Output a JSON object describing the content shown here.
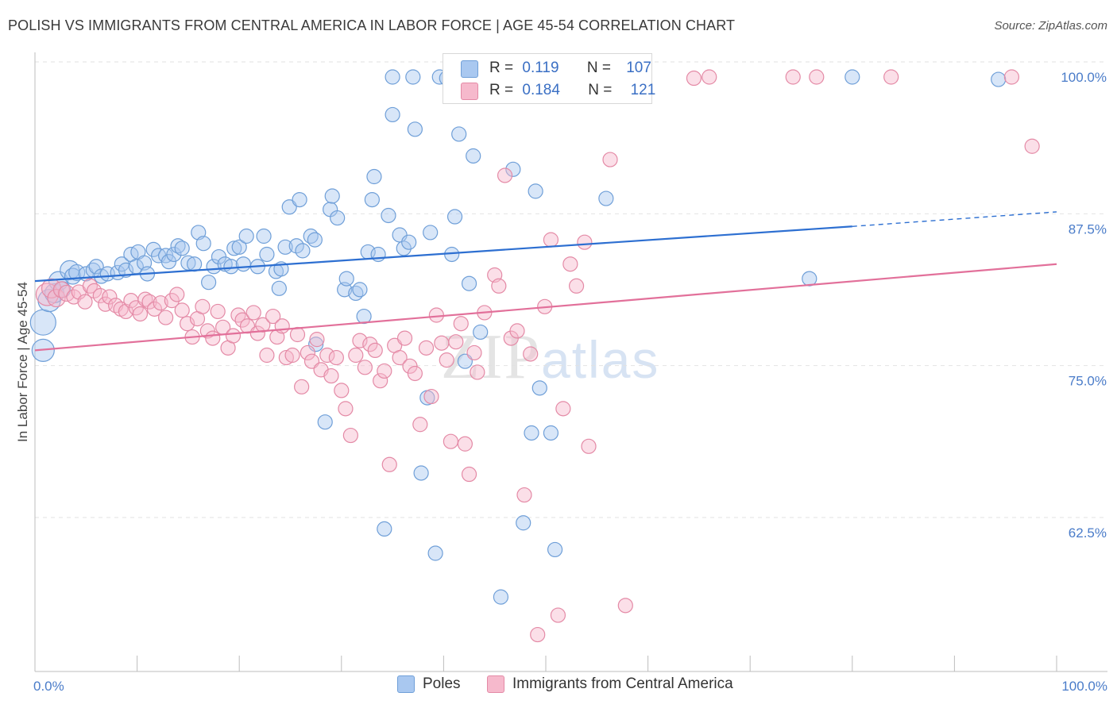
{
  "title": "POLISH VS IMMIGRANTS FROM CENTRAL AMERICA IN LABOR FORCE | AGE 45-54 CORRELATION CHART",
  "source": "Source: ZipAtlas.com",
  "watermark": {
    "zip": "ZIP",
    "atlas": "atlas"
  },
  "legend": {
    "rows": [
      {
        "r_label": "R =",
        "r_value": "0.119",
        "n_label": "N =",
        "n_value": "107",
        "color": "#a9c8f0"
      },
      {
        "r_label": "R =",
        "r_value": "0.184",
        "n_label": "N =",
        "n_value": "121",
        "color": "#f6b9cc"
      }
    ]
  },
  "bottom_legend": [
    {
      "label": "Poles",
      "color": "#a9c8f0"
    },
    {
      "label": "Immigrants from Central America",
      "color": "#f6b9cc"
    }
  ],
  "chart_data": {
    "type": "scatter",
    "title": "POLISH VS IMMIGRANTS FROM CENTRAL AMERICA IN LABOR FORCE | AGE 45-54 CORRELATION CHART",
    "xlabel": "",
    "ylabel": "In Labor Force | Age 45-54",
    "xlim": [
      0,
      100
    ],
    "ylim": [
      50,
      102
    ],
    "x_tick_labels": [
      "0.0%",
      "100.0%"
    ],
    "y_ticks": [
      100.0,
      87.5,
      75.0,
      62.5
    ],
    "y_tick_labels": [
      "100.0%",
      "87.5%",
      "75.0%",
      "62.5%"
    ],
    "grid": "horizontal dashed",
    "legend_position": "top-center",
    "series": [
      {
        "name": "Poles",
        "color": "#a9c8f0",
        "stroke": "#6f9fd8",
        "trend": {
          "x": [
            0,
            80
          ],
          "y": [
            83.2,
            87.7
          ],
          "dashed_to": [
            100,
            88.9
          ],
          "color": "#2d6fd1"
        },
        "points": [
          [
            0.8,
            79.8,
            16
          ],
          [
            0.8,
            77.5,
            14
          ],
          [
            1.4,
            81.6,
            14
          ],
          [
            1.9,
            82.2,
            12
          ],
          [
            2.3,
            83.2,
            12
          ],
          [
            2.7,
            82.5,
            10
          ],
          [
            3.4,
            84.1,
            12
          ],
          [
            3.7,
            83.6,
            10
          ],
          [
            4.1,
            83.9,
            10
          ],
          [
            5.0,
            83.8,
            9
          ],
          [
            5.7,
            84.1,
            9
          ],
          [
            6.0,
            84.4,
            9
          ],
          [
            6.5,
            83.6,
            9
          ],
          [
            7.1,
            83.8,
            9
          ],
          [
            8.1,
            83.9,
            9
          ],
          [
            8.5,
            84.6,
            9
          ],
          [
            8.9,
            84.1,
            9
          ],
          [
            9.4,
            85.4,
            9
          ],
          [
            9.9,
            84.4,
            9
          ],
          [
            10.1,
            85.6,
            9
          ],
          [
            10.7,
            84.7,
            9
          ],
          [
            11.0,
            83.8,
            9
          ],
          [
            11.6,
            85.8,
            9
          ],
          [
            12.1,
            85.3,
            9
          ],
          [
            12.8,
            85.3,
            9
          ],
          [
            13.1,
            84.8,
            9
          ],
          [
            13.6,
            85.4,
            9
          ],
          [
            14.0,
            86.1,
            9
          ],
          [
            14.4,
            85.9,
            9
          ],
          [
            15.0,
            84.7,
            9
          ],
          [
            15.6,
            84.6,
            9
          ],
          [
            16.0,
            87.2,
            9
          ],
          [
            16.5,
            86.3,
            9
          ],
          [
            17.0,
            83.1,
            9
          ],
          [
            17.5,
            84.4,
            9
          ],
          [
            18.0,
            85.2,
            9
          ],
          [
            18.6,
            84.6,
            9
          ],
          [
            19.2,
            84.4,
            9
          ],
          [
            19.5,
            85.9,
            9
          ],
          [
            20.0,
            86.0,
            9
          ],
          [
            20.4,
            84.6,
            9
          ],
          [
            20.7,
            86.9,
            9
          ],
          [
            21.8,
            84.4,
            9
          ],
          [
            22.4,
            86.9,
            9
          ],
          [
            22.7,
            85.4,
            9
          ],
          [
            23.6,
            84.0,
            9
          ],
          [
            23.9,
            82.6,
            9
          ],
          [
            24.1,
            84.2,
            9
          ],
          [
            24.5,
            86.0,
            9
          ],
          [
            24.9,
            89.3,
            9
          ],
          [
            25.6,
            86.1,
            9
          ],
          [
            25.9,
            89.9,
            9
          ],
          [
            26.2,
            85.7,
            9
          ],
          [
            27.0,
            86.9,
            9
          ],
          [
            27.4,
            86.6,
            9
          ],
          [
            27.5,
            78.0,
            9
          ],
          [
            28.4,
            71.6,
            9
          ],
          [
            28.9,
            89.1,
            9
          ],
          [
            29.1,
            90.2,
            9
          ],
          [
            29.6,
            88.4,
            9
          ],
          [
            30.3,
            82.5,
            9
          ],
          [
            30.5,
            83.4,
            9
          ],
          [
            31.4,
            82.2,
            9
          ],
          [
            31.8,
            82.5,
            9
          ],
          [
            32.2,
            80.3,
            9
          ],
          [
            32.6,
            85.6,
            9
          ],
          [
            33.0,
            89.9,
            9
          ],
          [
            33.2,
            91.8,
            9
          ],
          [
            33.6,
            85.4,
            9
          ],
          [
            34.2,
            62.8,
            9
          ],
          [
            34.6,
            88.6,
            9
          ],
          [
            35.0,
            96.9,
            9
          ],
          [
            35.7,
            87.0,
            9
          ],
          [
            36.1,
            85.9,
            9
          ],
          [
            36.6,
            86.4,
            9
          ],
          [
            37.2,
            95.7,
            9
          ],
          [
            37.8,
            67.4,
            9
          ],
          [
            38.4,
            73.6,
            9
          ],
          [
            38.7,
            87.2,
            9
          ],
          [
            39.2,
            60.8,
            9
          ],
          [
            39.6,
            100.0,
            9
          ],
          [
            40.3,
            99.9,
            9
          ],
          [
            40.8,
            85.4,
            9
          ],
          [
            41.1,
            88.5,
            9
          ],
          [
            41.5,
            95.3,
            9
          ],
          [
            42.1,
            76.6,
            9
          ],
          [
            42.5,
            83.0,
            9
          ],
          [
            42.9,
            93.5,
            9
          ],
          [
            43.6,
            79.0,
            9
          ],
          [
            45.6,
            57.2,
            9
          ],
          [
            46.8,
            92.4,
            9
          ],
          [
            47.8,
            63.3,
            9
          ],
          [
            48.6,
            70.7,
            9
          ],
          [
            49.0,
            90.6,
            9
          ],
          [
            49.4,
            74.4,
            9
          ],
          [
            49.3,
            100.0,
            9
          ],
          [
            50.5,
            70.7,
            9
          ],
          [
            50.9,
            61.1,
            9
          ],
          [
            51.0,
            99.8,
            9
          ],
          [
            55.9,
            90.0,
            9
          ],
          [
            57.8,
            99.9,
            9
          ],
          [
            58.7,
            100.0,
            9
          ],
          [
            75.8,
            83.4,
            9
          ],
          [
            80.0,
            100.0,
            9
          ],
          [
            94.3,
            99.8,
            9
          ],
          [
            37.0,
            100.0,
            9
          ],
          [
            35.0,
            100.0,
            9
          ]
        ]
      },
      {
        "name": "Immigrants from Central America",
        "color": "#f6b9cc",
        "stroke": "#e48aa6",
        "trend": {
          "x": [
            0,
            100
          ],
          "y": [
            77.5,
            84.6
          ],
          "color": "#e2709a"
        },
        "points": [
          [
            1.2,
            82.1,
            14
          ],
          [
            1.6,
            82.6,
            12
          ],
          [
            2.1,
            81.8,
            11
          ],
          [
            2.6,
            82.5,
            10
          ],
          [
            3.1,
            82.2,
            10
          ],
          [
            3.8,
            81.9,
            9
          ],
          [
            4.3,
            82.3,
            9
          ],
          [
            4.9,
            81.5,
            9
          ],
          [
            5.4,
            82.8,
            9
          ],
          [
            5.8,
            82.4,
            9
          ],
          [
            6.4,
            82.0,
            9
          ],
          [
            6.9,
            81.3,
            9
          ],
          [
            7.3,
            81.9,
            9
          ],
          [
            7.9,
            81.2,
            9
          ],
          [
            8.4,
            80.9,
            9
          ],
          [
            8.9,
            80.7,
            9
          ],
          [
            9.4,
            81.6,
            9
          ],
          [
            9.9,
            81.0,
            9
          ],
          [
            10.3,
            80.5,
            9
          ],
          [
            10.8,
            81.7,
            9
          ],
          [
            11.2,
            81.5,
            9
          ],
          [
            11.7,
            80.9,
            9
          ],
          [
            12.3,
            81.4,
            9
          ],
          [
            12.8,
            80.2,
            9
          ],
          [
            13.4,
            81.6,
            9
          ],
          [
            13.9,
            82.1,
            9
          ],
          [
            14.4,
            80.8,
            9
          ],
          [
            14.9,
            79.7,
            9
          ],
          [
            15.4,
            78.6,
            9
          ],
          [
            15.9,
            80.1,
            9
          ],
          [
            16.4,
            81.1,
            9
          ],
          [
            16.9,
            79.1,
            9
          ],
          [
            17.4,
            78.5,
            9
          ],
          [
            17.9,
            80.7,
            9
          ],
          [
            18.4,
            79.4,
            9
          ],
          [
            18.9,
            77.7,
            9
          ],
          [
            19.4,
            78.7,
            9
          ],
          [
            19.9,
            80.4,
            9
          ],
          [
            20.3,
            80.0,
            9
          ],
          [
            20.8,
            79.5,
            9
          ],
          [
            21.4,
            80.6,
            9
          ],
          [
            21.8,
            78.9,
            9
          ],
          [
            22.3,
            79.6,
            9
          ],
          [
            22.7,
            77.1,
            9
          ],
          [
            23.3,
            80.3,
            9
          ],
          [
            23.7,
            78.6,
            9
          ],
          [
            24.2,
            79.5,
            9
          ],
          [
            24.6,
            76.9,
            9
          ],
          [
            25.2,
            77.1,
            9
          ],
          [
            25.7,
            78.8,
            9
          ],
          [
            26.1,
            74.5,
            9
          ],
          [
            26.7,
            77.3,
            9
          ],
          [
            27.1,
            76.6,
            9
          ],
          [
            27.6,
            78.4,
            9
          ],
          [
            28.0,
            75.9,
            9
          ],
          [
            28.6,
            77.1,
            9
          ],
          [
            29.0,
            75.4,
            9
          ],
          [
            29.5,
            76.9,
            9
          ],
          [
            30.0,
            74.2,
            9
          ],
          [
            30.4,
            72.7,
            9
          ],
          [
            30.9,
            70.5,
            9
          ],
          [
            31.4,
            77.1,
            9
          ],
          [
            31.8,
            78.3,
            9
          ],
          [
            32.3,
            76.1,
            9
          ],
          [
            32.8,
            78.0,
            9
          ],
          [
            33.3,
            77.5,
            9
          ],
          [
            33.8,
            75.0,
            9
          ],
          [
            34.2,
            75.8,
            9
          ],
          [
            34.7,
            68.1,
            9
          ],
          [
            35.2,
            77.9,
            9
          ],
          [
            35.7,
            76.9,
            9
          ],
          [
            36.2,
            78.5,
            9
          ],
          [
            36.7,
            76.2,
            9
          ],
          [
            37.2,
            75.6,
            9
          ],
          [
            37.7,
            71.4,
            9
          ],
          [
            38.3,
            77.7,
            9
          ],
          [
            38.8,
            73.7,
            9
          ],
          [
            39.3,
            80.4,
            9
          ],
          [
            39.8,
            78.1,
            9
          ],
          [
            40.3,
            76.7,
            9
          ],
          [
            40.7,
            70.0,
            9
          ],
          [
            41.2,
            78.2,
            9
          ],
          [
            41.7,
            79.7,
            9
          ],
          [
            42.1,
            69.8,
            9
          ],
          [
            42.5,
            67.3,
            9
          ],
          [
            43.0,
            77.3,
            9
          ],
          [
            43.3,
            75.7,
            9
          ],
          [
            44.0,
            80.6,
            9
          ],
          [
            45.0,
            83.7,
            9
          ],
          [
            45.4,
            82.8,
            9
          ],
          [
            46.0,
            91.9,
            9
          ],
          [
            46.6,
            78.5,
            9
          ],
          [
            47.2,
            79.1,
            9
          ],
          [
            47.9,
            65.6,
            9
          ],
          [
            48.5,
            77.2,
            9
          ],
          [
            49.2,
            54.1,
            9
          ],
          [
            49.9,
            81.1,
            9
          ],
          [
            50.5,
            86.6,
            9
          ],
          [
            51.2,
            55.7,
            9
          ],
          [
            51.7,
            72.7,
            9
          ],
          [
            52.4,
            84.6,
            9
          ],
          [
            53.0,
            82.8,
            9
          ],
          [
            53.8,
            86.4,
            9
          ],
          [
            54.2,
            69.6,
            9
          ],
          [
            56.3,
            93.2,
            9
          ],
          [
            57.8,
            56.5,
            9
          ],
          [
            59.1,
            99.8,
            9
          ],
          [
            64.5,
            99.9,
            9
          ],
          [
            66.0,
            100.0,
            9
          ],
          [
            74.2,
            100.0,
            9
          ],
          [
            76.5,
            100.0,
            9
          ],
          [
            83.8,
            100.0,
            9
          ],
          [
            95.6,
            100.0,
            9
          ],
          [
            97.6,
            94.3,
            9
          ],
          [
            45.5,
            99.9,
            9
          ],
          [
            46.8,
            100.0,
            9
          ],
          [
            48.0,
            100.0,
            9
          ],
          [
            47.0,
            99.8,
            9
          ],
          [
            51.8,
            99.9,
            9
          ]
        ]
      }
    ]
  }
}
